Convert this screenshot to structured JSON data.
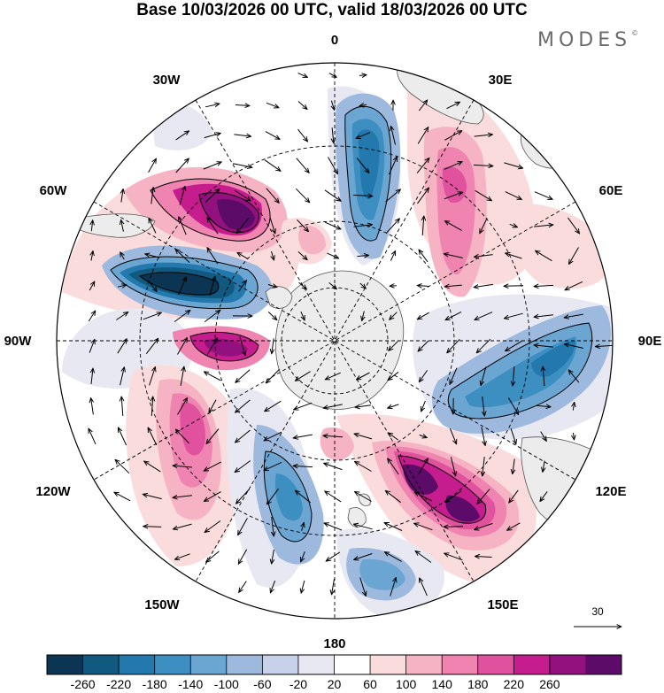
{
  "title": "Base 10/03/2026 00 UTC, valid 18/03/2026 00 UTC",
  "brand": {
    "name": "MODES",
    "mark": "©"
  },
  "longitude_labels": {
    "top": "0",
    "e30": "30E",
    "e60": "60E",
    "e90": "90E",
    "e120": "120E",
    "e150": "150E",
    "bottom": "180",
    "w150": "150W",
    "w120": "120W",
    "w90": "90W",
    "w60": "60W",
    "w30": "30W"
  },
  "reference_vector": {
    "value": "30"
  },
  "colorbar": {
    "ticks": [
      "-260",
      "-220",
      "-180",
      "-140",
      "-100",
      "-60",
      "-20",
      "20",
      "60",
      "100",
      "140",
      "180",
      "220",
      "260"
    ],
    "colors": [
      "#0b3552",
      "#11597f",
      "#2379ad",
      "#3d8fc2",
      "#6ba6d2",
      "#9db9dd",
      "#c8d1ea",
      "#e8e8f2",
      "#ffffff",
      "#fbdcdc",
      "#f6b3c3",
      "#ef84b1",
      "#e0519e",
      "#c61d8e",
      "#93107f",
      "#5c0c68"
    ]
  }
}
